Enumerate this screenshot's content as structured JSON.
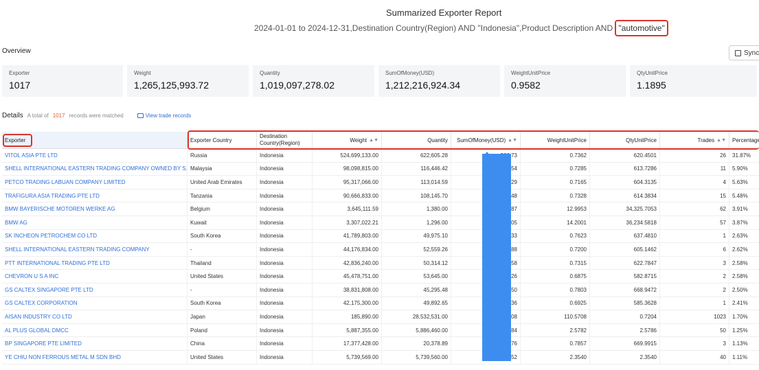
{
  "header": {
    "title": "Summarized Exporter Report",
    "subtitle_prefix": "2024-01-01 to 2024-12-31,Destination Country(Region) AND \"Indonesia\",Product Description AND ",
    "keyword": "\"automotive\""
  },
  "overview": {
    "label": "Overview",
    "sync_label": "Sync",
    "stats": [
      {
        "label": "Exporter",
        "value": "1017"
      },
      {
        "label": "Weight",
        "value": "1,265,125,993.72"
      },
      {
        "label": "Quantity",
        "value": "1,019,097,278.02"
      },
      {
        "label": "SumOfMoney(USD)",
        "value": "1,212,216,924.34"
      },
      {
        "label": "WeightUnitPrice",
        "value": "0.9582"
      },
      {
        "label": "QtyUnitPrice",
        "value": "1.1895"
      }
    ]
  },
  "details": {
    "label": "Details",
    "total_prefix": "A total of",
    "count": "1017",
    "total_suffix": "records were matched",
    "view_trade": "View trade records"
  },
  "table": {
    "columns": [
      "Exporter",
      "Exporter Country",
      "Destination Country(Region)",
      "Weight",
      "Quantity",
      "SumOfMoney(USD)",
      "WeightUnitPrice",
      "QtyUnitPrice",
      "Trades",
      "Percentage"
    ],
    "rows": [
      [
        "VITOL ASIA PTE LTD",
        "Russia",
        "Indonesia",
        "524,699,133.00",
        "622,605.28",
        "386,73",
        "0.7362",
        "620.4501",
        "26",
        "31.87%"
      ],
      [
        "SHELL INTERNATIONAL EASTERN TRADING COMPANY OWNED BY S...",
        "Malaysia",
        "Indonesia",
        "98,098,815.00",
        "116,446.42",
        "71,54",
        "0.7285",
        "613.7286",
        "11",
        "5.90%"
      ],
      [
        "PETCO TRADING LABUAN COMPANY LIMITED",
        "United Arab Emirates",
        "Indonesia",
        "95,317,066.00",
        "113,014.59",
        "68,29",
        "0.7165",
        "604.3135",
        "4",
        "5.63%"
      ],
      [
        "TRAFIGURA ASIA TRADING PTE LTD",
        "Tanzania",
        "Indonesia",
        "90,666,833.00",
        "108,145.70",
        "66,48",
        "0.7328",
        "614.3834",
        "15",
        "5.48%"
      ],
      [
        "BMW BAYERISCHE MOTOREN WERKE AG",
        "Belgium",
        "Indonesia",
        "3,645,111.59",
        "1,380.00",
        "47,87",
        "12.9953",
        "34,325.7053",
        "62",
        "3.91%"
      ],
      [
        "BMW AG",
        "Kuwait",
        "Indonesia",
        "3,307,022.21",
        "1,296.00",
        "46,05",
        "14.2001",
        "36,234.5818",
        "57",
        "3.87%"
      ],
      [
        "SK INCHEON PETROCHEM CO LTD",
        "South Korea",
        "Indonesia",
        "41,789,803.00",
        "49,975.10",
        "31,33",
        "0.7623",
        "637.4810",
        "1",
        "2.63%"
      ],
      [
        "SHELL INTERNATIONAL EASTERN TRADING COMPANY",
        "-",
        "Indonesia",
        "44,176,834.00",
        "52,559.26",
        "31,88",
        "0.7200",
        "605.1462",
        "6",
        "2.62%"
      ],
      [
        "PTT INTERNATIONAL TRADING PTE LTD",
        "Thailand",
        "Indonesia",
        "42,836,240.00",
        "50,314.12",
        "31,58",
        "0.7315",
        "622.7847",
        "3",
        "2.58%"
      ],
      [
        "CHEVRON U S A INC",
        "United States",
        "Indonesia",
        "45,478,751.00",
        "53,645.00",
        "31,26",
        "0.6875",
        "582.8715",
        "2",
        "2.58%"
      ],
      [
        "GS CALTEX SINGAPORE PTE LTD",
        "-",
        "Indonesia",
        "38,831,808.00",
        "45,295.48",
        "30,50",
        "0.7803",
        "668.9472",
        "2",
        "2.50%"
      ],
      [
        "GS CALTEX CORPORATION",
        "South Korea",
        "Indonesia",
        "42,175,300.00",
        "49,892.65",
        "29,36",
        "0.6925",
        "585.3628",
        "1",
        "2.41%"
      ],
      [
        "AISAN INDUSTRY CO LTD",
        "Japan",
        "Indonesia",
        "185,890.00",
        "28,532,531.00",
        "20,08",
        "110.5708",
        "0.7204",
        "1023",
        "1.70%"
      ],
      [
        "AL PLUS GLOBAL DMCC",
        "Poland",
        "Indonesia",
        "5,887,355.00",
        "5,886,460.00",
        "15,84",
        "2.5782",
        "2.5786",
        "50",
        "1.25%"
      ],
      [
        "BP SINGAPORE PTE LIMITED",
        "China",
        "Indonesia",
        "17,377,428.00",
        "20,378.89",
        "13,76",
        "0.7857",
        "669.9915",
        "3",
        "1.13%"
      ],
      [
        "YE CHIU NON FERROUS METAL M SDN BHD",
        "United States",
        "Indonesia",
        "5,739,569.00",
        "5,739,560.00",
        "13,52",
        "2.3540",
        "2.3540",
        "40",
        "1.11%"
      ]
    ]
  }
}
